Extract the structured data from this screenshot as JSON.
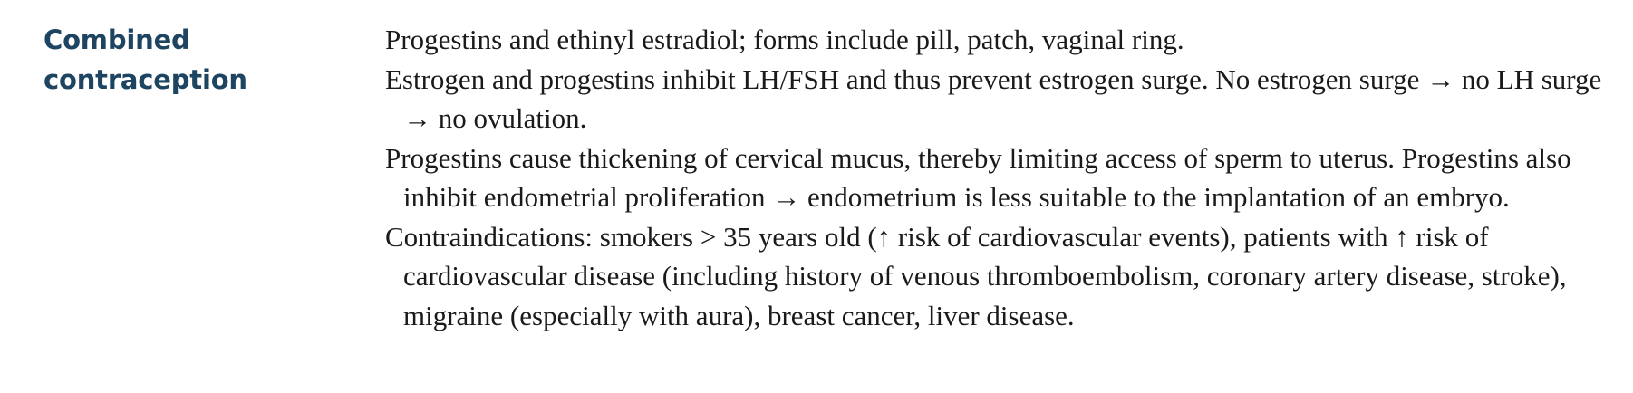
{
  "section": {
    "heading_line1": "Combined",
    "heading_line2": "contraception"
  },
  "paragraphs": [
    "Progestins and ethinyl estradiol; forms include pill, patch, vaginal ring.",
    "Estrogen and progestins inhibit LH/FSH and thus prevent estrogen surge. No estrogen surge → no LH surge → no ovulation.",
    "Progestins cause thickening of cervical mucus, thereby limiting access of sperm to uterus. Progestins also inhibit endometrial proliferation → endometrium is less suitable to the implantation of an embryo.",
    "Contraindications: smokers > 35 years old (↑ risk of cardiovascular events), patients with ↑ risk of cardiovascular disease (including history of venous thromboembolism, coronary artery disease, stroke), migraine (especially with aura), breast cancer, liver disease."
  ]
}
